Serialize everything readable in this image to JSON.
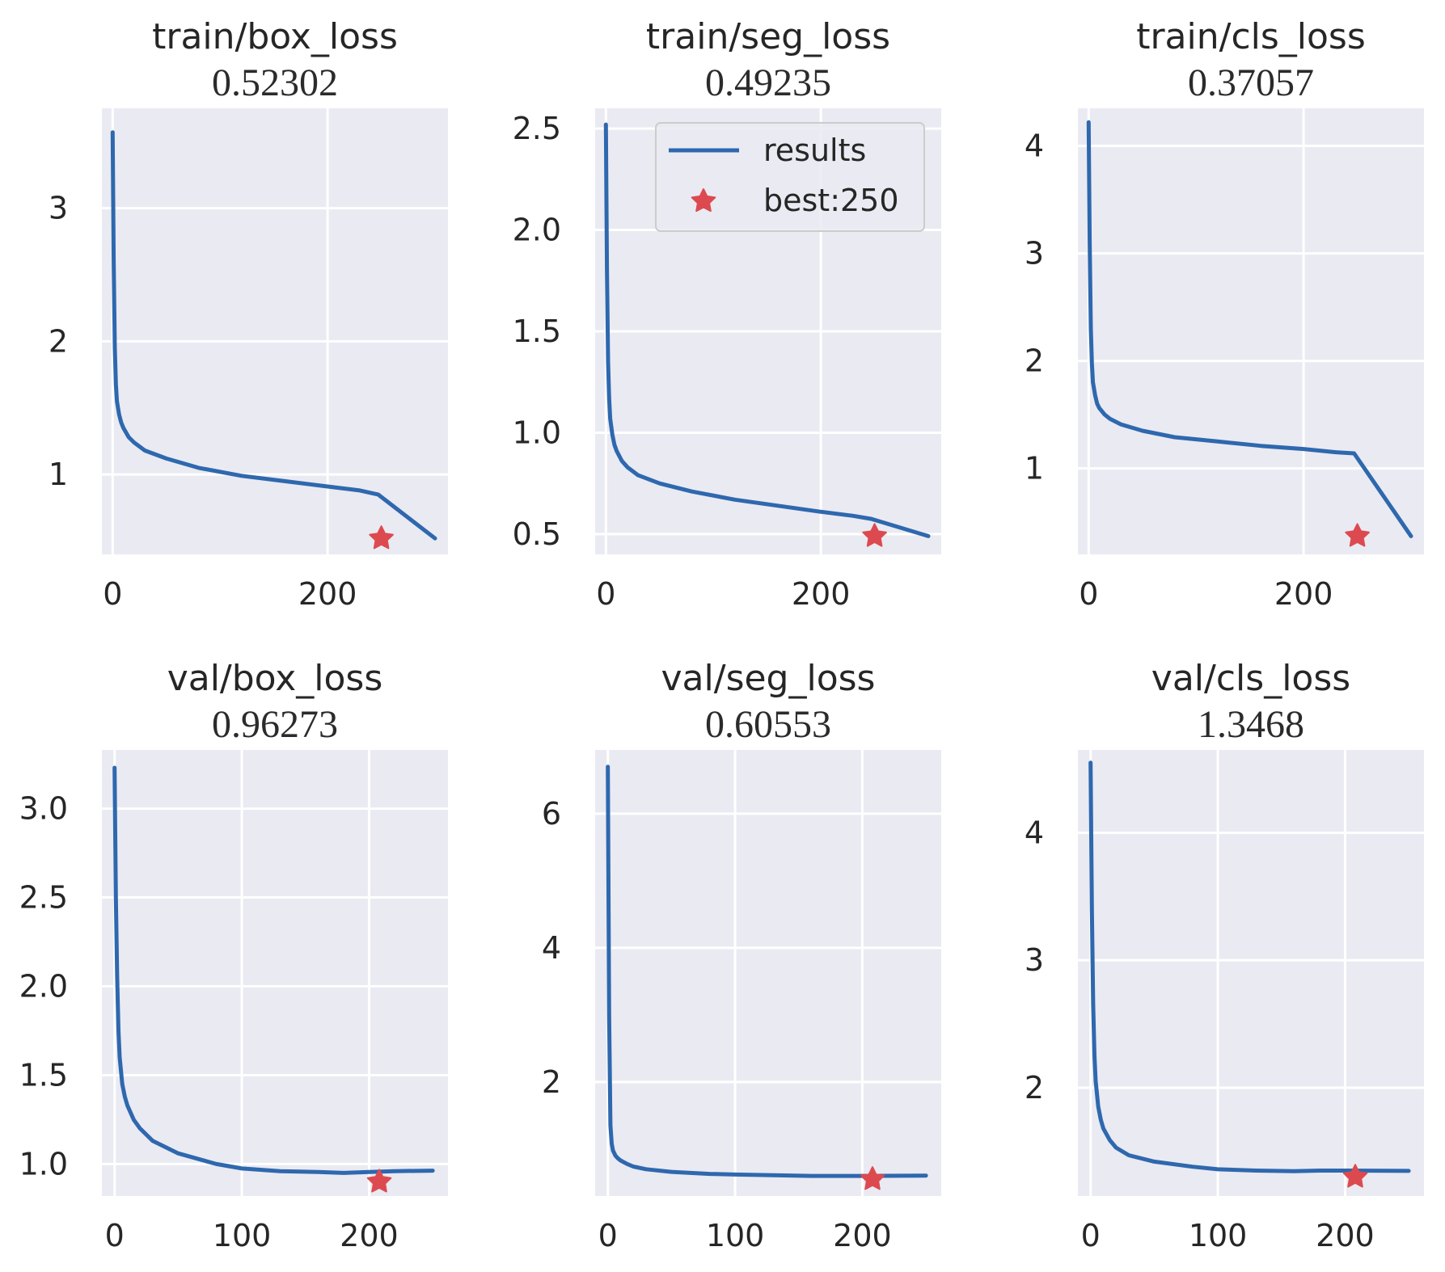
{
  "colors": {
    "panel_bg": "#EAEAF2",
    "grid": "#FFFFFF",
    "line": "#2E68AE",
    "star": "#DC4A50"
  },
  "legend": {
    "line_label": "results",
    "star_label": "best:250"
  },
  "chart_data": [
    {
      "type": "line",
      "title": "train/box_loss",
      "subtitle": "0.52302",
      "xlim": [
        -10,
        312
      ],
      "ylim": [
        0.4,
        3.75
      ],
      "xticks": [
        0,
        200
      ],
      "xtick_labels": [
        "0",
        "200"
      ],
      "yticks": [
        1,
        2,
        3
      ],
      "ytick_labels": [
        "1",
        "2",
        "3"
      ],
      "best": {
        "x": 250,
        "y": 0.52
      },
      "series": [
        {
          "name": "results",
          "x": [
            0,
            1,
            2,
            3,
            4,
            6,
            8,
            10,
            15,
            20,
            30,
            50,
            80,
            120,
            160,
            200,
            230,
            247,
            300
          ],
          "y": [
            3.57,
            2.6,
            1.95,
            1.68,
            1.55,
            1.45,
            1.39,
            1.35,
            1.28,
            1.24,
            1.18,
            1.12,
            1.05,
            0.99,
            0.95,
            0.91,
            0.88,
            0.85,
            0.52
          ]
        }
      ]
    },
    {
      "type": "line",
      "title": "train/seg_loss",
      "subtitle": "0.49235",
      "xlim": [
        -10,
        312
      ],
      "ylim": [
        0.4,
        2.6
      ],
      "xticks": [
        0,
        200
      ],
      "xtick_labels": [
        "0",
        "200"
      ],
      "yticks": [
        0.5,
        1.0,
        1.5,
        2.0,
        2.5
      ],
      "ytick_labels": [
        "0.5",
        "1.0",
        "1.5",
        "2.0",
        "2.5"
      ],
      "best": {
        "x": 250,
        "y": 0.49
      },
      "legend": true,
      "series": [
        {
          "name": "results",
          "x": [
            0,
            1,
            2,
            3,
            4,
            6,
            8,
            10,
            15,
            20,
            30,
            50,
            80,
            120,
            160,
            200,
            230,
            247,
            300
          ],
          "y": [
            2.52,
            1.8,
            1.35,
            1.17,
            1.07,
            0.99,
            0.94,
            0.91,
            0.86,
            0.83,
            0.79,
            0.75,
            0.71,
            0.67,
            0.64,
            0.61,
            0.59,
            0.575,
            0.49
          ]
        }
      ]
    },
    {
      "type": "line",
      "title": "train/cls_loss",
      "subtitle": "0.37057",
      "xlim": [
        -10,
        312
      ],
      "ylim": [
        0.2,
        4.35
      ],
      "xticks": [
        0,
        200
      ],
      "xtick_labels": [
        "0",
        "200"
      ],
      "yticks": [
        1,
        2,
        3,
        4
      ],
      "ytick_labels": [
        "1",
        "2",
        "3",
        "4"
      ],
      "best": {
        "x": 250,
        "y": 0.37
      },
      "series": [
        {
          "name": "results",
          "x": [
            0,
            1,
            2,
            3,
            4,
            6,
            8,
            10,
            15,
            20,
            30,
            50,
            80,
            120,
            160,
            200,
            230,
            247,
            300
          ],
          "y": [
            4.22,
            3.1,
            2.3,
            1.98,
            1.8,
            1.68,
            1.6,
            1.56,
            1.5,
            1.46,
            1.41,
            1.35,
            1.29,
            1.25,
            1.21,
            1.18,
            1.15,
            1.14,
            0.37
          ]
        }
      ]
    },
    {
      "type": "line",
      "title": "val/box_loss",
      "subtitle": "0.96273",
      "xlim": [
        -10,
        262
      ],
      "ylim": [
        0.82,
        3.33
      ],
      "xticks": [
        0,
        100,
        200
      ],
      "xtick_labels": [
        "0",
        "100",
        "200"
      ],
      "yticks": [
        1.0,
        1.5,
        2.0,
        2.5,
        3.0
      ],
      "ytick_labels": [
        "1.0",
        "1.5",
        "2.0",
        "2.5",
        "3.0"
      ],
      "best": {
        "x": 208,
        "y": 0.9
      },
      "series": [
        {
          "name": "results",
          "x": [
            0,
            1,
            2,
            3,
            4,
            6,
            8,
            10,
            15,
            20,
            30,
            50,
            80,
            100,
            130,
            160,
            180,
            200,
            220,
            250
          ],
          "y": [
            3.23,
            2.5,
            2.05,
            1.75,
            1.6,
            1.45,
            1.38,
            1.33,
            1.25,
            1.2,
            1.13,
            1.06,
            1.0,
            0.975,
            0.96,
            0.955,
            0.95,
            0.955,
            0.96,
            0.963
          ]
        }
      ]
    },
    {
      "type": "line",
      "title": "val/seg_loss",
      "subtitle": "0.60553",
      "xlim": [
        -10,
        262
      ],
      "ylim": [
        0.3,
        6.95
      ],
      "xticks": [
        0,
        100,
        200
      ],
      "xtick_labels": [
        "0",
        "100",
        "200"
      ],
      "yticks": [
        2,
        4,
        6
      ],
      "ytick_labels": [
        "2",
        "4",
        "6"
      ],
      "best": {
        "x": 208,
        "y": 0.55
      },
      "series": [
        {
          "name": "results",
          "x": [
            0,
            1,
            2,
            3,
            4,
            6,
            8,
            10,
            15,
            20,
            30,
            50,
            80,
            100,
            130,
            160,
            200,
            250
          ],
          "y": [
            6.7,
            3.0,
            1.35,
            1.08,
            0.98,
            0.9,
            0.86,
            0.83,
            0.78,
            0.74,
            0.7,
            0.66,
            0.63,
            0.62,
            0.61,
            0.6,
            0.6,
            0.605
          ]
        }
      ]
    },
    {
      "type": "line",
      "title": "val/cls_loss",
      "subtitle": "1.3468",
      "xlim": [
        -10,
        262
      ],
      "ylim": [
        1.15,
        4.65
      ],
      "xticks": [
        0,
        100,
        200
      ],
      "xtick_labels": [
        "0",
        "100",
        "200"
      ],
      "yticks": [
        2,
        3,
        4
      ],
      "ytick_labels": [
        "2",
        "3",
        "4"
      ],
      "best": {
        "x": 208,
        "y": 1.3
      },
      "series": [
        {
          "name": "results",
          "x": [
            0,
            1,
            2,
            3,
            4,
            6,
            8,
            10,
            15,
            20,
            30,
            50,
            80,
            100,
            130,
            160,
            180,
            200,
            250
          ],
          "y": [
            4.55,
            3.4,
            2.65,
            2.25,
            2.05,
            1.85,
            1.75,
            1.68,
            1.59,
            1.53,
            1.47,
            1.42,
            1.38,
            1.36,
            1.35,
            1.345,
            1.35,
            1.35,
            1.347
          ]
        }
      ]
    }
  ]
}
